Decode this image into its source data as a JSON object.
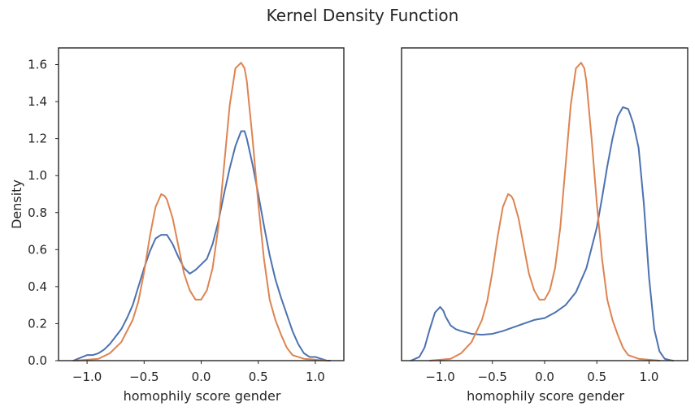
{
  "suptitle": "Kernel Density Function",
  "colors": {
    "blue": "#4c72b0",
    "orange": "#dd8452"
  },
  "chart_data": [
    {
      "type": "line",
      "xlabel": "homophily score gender",
      "ylabel": "Density",
      "xlim": [
        -1.25,
        1.25
      ],
      "ylim": [
        0,
        1.69
      ],
      "xticks": [
        -1.0,
        -0.5,
        0.0,
        0.5,
        1.0
      ],
      "xtick_labels": [
        "−1.0",
        "−0.5",
        "0.0",
        "0.5",
        "1.0"
      ],
      "yticks": [
        0.0,
        0.2,
        0.4,
        0.6,
        0.8,
        1.0,
        1.2,
        1.4,
        1.6
      ],
      "ytick_labels": [
        "0.0",
        "0.2",
        "0.4",
        "0.6",
        "0.8",
        "1.0",
        "1.2",
        "1.4",
        "1.6"
      ],
      "series": [
        {
          "color": "blue",
          "x": [
            -1.12,
            -1.08,
            -1.04,
            -1.0,
            -0.95,
            -0.9,
            -0.85,
            -0.8,
            -0.75,
            -0.7,
            -0.65,
            -0.6,
            -0.55,
            -0.5,
            -0.45,
            -0.4,
            -0.35,
            -0.3,
            -0.25,
            -0.2,
            -0.15,
            -0.1,
            -0.05,
            0.0,
            0.05,
            0.1,
            0.15,
            0.2,
            0.25,
            0.3,
            0.35,
            0.38,
            0.4,
            0.45,
            0.5,
            0.55,
            0.6,
            0.65,
            0.7,
            0.75,
            0.8,
            0.85,
            0.9,
            0.95,
            1.0,
            1.05,
            1.1,
            1.13
          ],
          "y": [
            0.0,
            0.01,
            0.02,
            0.03,
            0.03,
            0.04,
            0.06,
            0.09,
            0.13,
            0.17,
            0.23,
            0.3,
            0.4,
            0.5,
            0.59,
            0.66,
            0.68,
            0.68,
            0.63,
            0.56,
            0.5,
            0.47,
            0.49,
            0.52,
            0.55,
            0.63,
            0.75,
            0.9,
            1.04,
            1.16,
            1.24,
            1.24,
            1.2,
            1.06,
            0.9,
            0.73,
            0.57,
            0.44,
            0.34,
            0.25,
            0.16,
            0.09,
            0.04,
            0.02,
            0.02,
            0.01,
            0.0,
            0.0
          ]
        },
        {
          "color": "orange",
          "x": [
            -1.1,
            -1.0,
            -0.9,
            -0.8,
            -0.7,
            -0.6,
            -0.55,
            -0.5,
            -0.45,
            -0.4,
            -0.35,
            -0.32,
            -0.3,
            -0.25,
            -0.2,
            -0.15,
            -0.1,
            -0.05,
            0.0,
            0.05,
            0.1,
            0.15,
            0.2,
            0.25,
            0.3,
            0.35,
            0.38,
            0.4,
            0.45,
            0.5,
            0.55,
            0.6,
            0.65,
            0.7,
            0.75,
            0.8,
            0.85,
            0.9,
            1.0,
            1.1
          ],
          "y": [
            0.0,
            0.005,
            0.01,
            0.04,
            0.1,
            0.22,
            0.32,
            0.48,
            0.67,
            0.83,
            0.9,
            0.89,
            0.87,
            0.77,
            0.62,
            0.47,
            0.38,
            0.33,
            0.33,
            0.38,
            0.5,
            0.72,
            1.05,
            1.38,
            1.58,
            1.61,
            1.58,
            1.51,
            1.2,
            0.85,
            0.55,
            0.33,
            0.22,
            0.14,
            0.07,
            0.03,
            0.02,
            0.01,
            0.005,
            0.0
          ]
        }
      ]
    },
    {
      "type": "line",
      "xlabel": "homophily score gender",
      "ylabel": "",
      "xlim": [
        -1.37,
        1.37
      ],
      "ylim": [
        0,
        1.69
      ],
      "xticks": [
        -1.0,
        -0.5,
        0.0,
        0.5,
        1.0
      ],
      "xtick_labels": [
        "−1.0",
        "−0.5",
        "0.0",
        "0.5",
        "1.0"
      ],
      "yticks": [],
      "ytick_labels": [],
      "series": [
        {
          "color": "blue",
          "x": [
            -1.28,
            -1.2,
            -1.15,
            -1.1,
            -1.05,
            -1.0,
            -0.97,
            -0.95,
            -0.9,
            -0.85,
            -0.8,
            -0.7,
            -0.6,
            -0.5,
            -0.4,
            -0.3,
            -0.2,
            -0.1,
            0.0,
            0.1,
            0.2,
            0.3,
            0.4,
            0.5,
            0.55,
            0.6,
            0.65,
            0.7,
            0.75,
            0.8,
            0.82,
            0.85,
            0.9,
            0.95,
            1.0,
            1.05,
            1.1,
            1.15,
            1.2,
            1.23
          ],
          "y": [
            0.0,
            0.02,
            0.07,
            0.17,
            0.26,
            0.29,
            0.27,
            0.24,
            0.19,
            0.17,
            0.16,
            0.145,
            0.14,
            0.145,
            0.16,
            0.18,
            0.2,
            0.22,
            0.23,
            0.26,
            0.3,
            0.37,
            0.5,
            0.72,
            0.88,
            1.05,
            1.2,
            1.32,
            1.37,
            1.36,
            1.33,
            1.28,
            1.15,
            0.85,
            0.45,
            0.17,
            0.05,
            0.01,
            0.003,
            0.0
          ]
        },
        {
          "color": "orange",
          "x": [
            -1.1,
            -1.0,
            -0.9,
            -0.8,
            -0.7,
            -0.6,
            -0.55,
            -0.5,
            -0.45,
            -0.4,
            -0.35,
            -0.32,
            -0.3,
            -0.25,
            -0.2,
            -0.15,
            -0.1,
            -0.05,
            0.0,
            0.05,
            0.1,
            0.15,
            0.2,
            0.25,
            0.3,
            0.35,
            0.38,
            0.4,
            0.45,
            0.5,
            0.55,
            0.6,
            0.65,
            0.7,
            0.75,
            0.8,
            0.85,
            0.9,
            1.0,
            1.1
          ],
          "y": [
            0.0,
            0.005,
            0.01,
            0.04,
            0.1,
            0.22,
            0.32,
            0.48,
            0.67,
            0.83,
            0.9,
            0.89,
            0.87,
            0.77,
            0.62,
            0.47,
            0.38,
            0.33,
            0.33,
            0.38,
            0.5,
            0.72,
            1.05,
            1.38,
            1.58,
            1.61,
            1.58,
            1.51,
            1.2,
            0.85,
            0.55,
            0.33,
            0.22,
            0.14,
            0.07,
            0.03,
            0.02,
            0.01,
            0.005,
            0.0
          ]
        }
      ]
    }
  ]
}
